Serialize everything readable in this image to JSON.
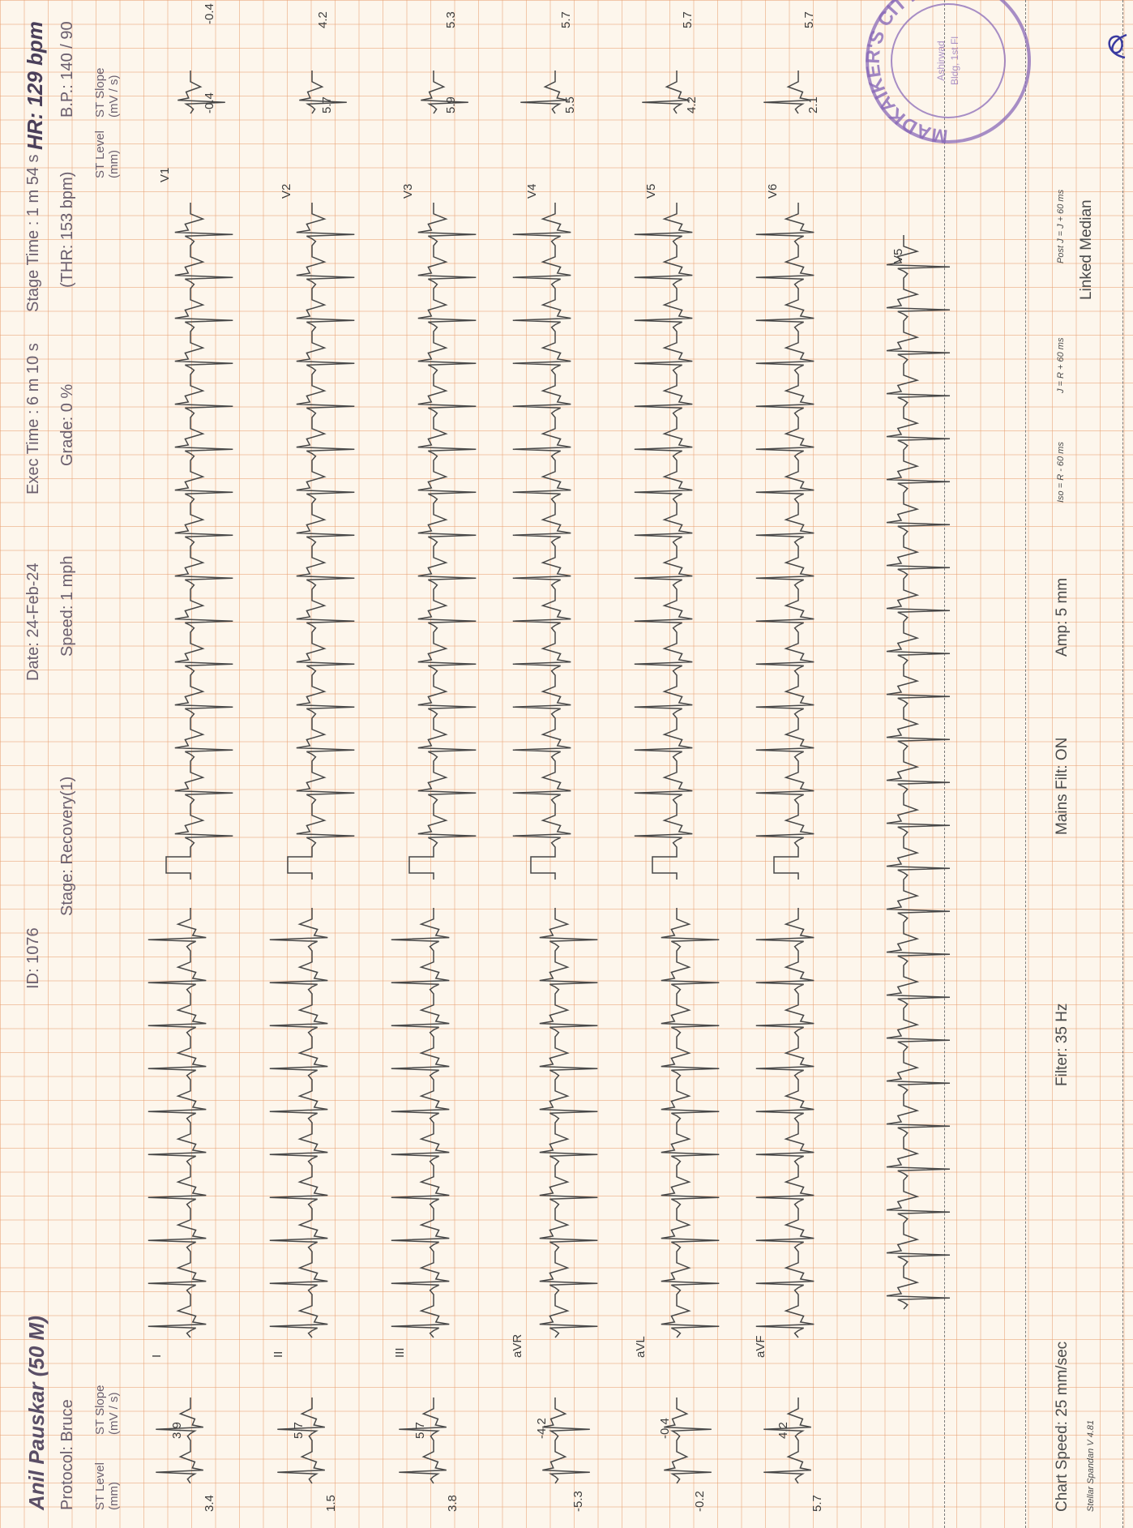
{
  "header": {
    "patient": "Anil Pauskar (50 M)",
    "protocol": "Protocol: Bruce",
    "id": "ID: 1076",
    "stage": "Stage: Recovery(1)",
    "date": "Date: 24-Feb-24",
    "speed": "Speed: 1 mph",
    "exec_time": "Exec Time : 6 m 10 s",
    "grade": "Grade: 0 %",
    "stage_time": "Stage Time : 1 m 54 s",
    "thr": "(THR: 153 bpm)",
    "hr": "HR: 129 bpm",
    "bp": "B.P.: 140 / 90"
  },
  "columns": {
    "st_level": "ST Level (mm)",
    "st_slope": "ST Slope (mV / s)"
  },
  "leads_left": [
    {
      "lead": "I",
      "level": "3.4",
      "slope": "3.9"
    },
    {
      "lead": "II",
      "level": "1.5",
      "slope": "5.7"
    },
    {
      "lead": "III",
      "level": "3.8",
      "slope": "5.7"
    },
    {
      "lead": "aVR",
      "level": "-5.3",
      "slope": "-4.2"
    },
    {
      "lead": "aVL",
      "level": "-0.2",
      "slope": "-0.4"
    },
    {
      "lead": "aVF",
      "level": "5.7",
      "slope": "4.2"
    }
  ],
  "leads_right": [
    {
      "lead": "V1",
      "level": "-0.4",
      "slope": "-0.4"
    },
    {
      "lead": "V2",
      "level": "5.7",
      "slope": "4.2"
    },
    {
      "lead": "V3",
      "level": "5.9",
      "slope": "5.3"
    },
    {
      "lead": "V4",
      "level": "5.5",
      "slope": "5.7"
    },
    {
      "lead": "V5",
      "level": "4.2",
      "slope": "5.7"
    },
    {
      "lead": "V6",
      "level": "2.1",
      "slope": "5.7"
    }
  ],
  "rhythm_lead": "V5",
  "footer": {
    "chart_speed": "Chart Speed: 25 mm/sec",
    "filter": "Filter: 35 Hz",
    "mains": "Mains Filt: ON",
    "amp": "Amp: 5 mm",
    "iso": "Iso = R - 60 ms",
    "j": "J = R + 60 ms",
    "post_j": "Post J = J + 60 ms",
    "median": "Linked Median",
    "spandan": "Stellar Spandan V 4.81"
  },
  "stamp_text": "MADKAIKER'S CITY",
  "colors": {
    "paper": "#fdf6ec",
    "grid": "#e8a073",
    "trace": "#4a4a4a",
    "stamp": "#7a5aa8"
  }
}
